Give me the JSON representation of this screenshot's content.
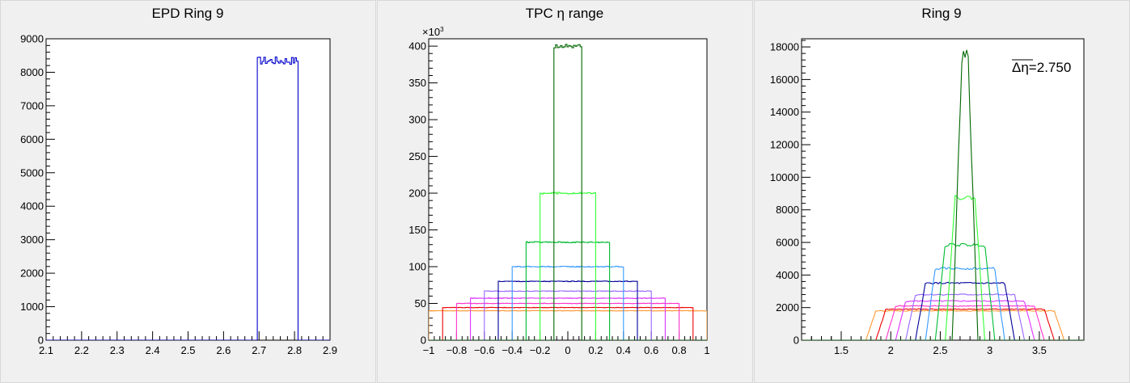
{
  "chart_data": [
    {
      "type": "histogram",
      "title": "EPD Ring 9",
      "xlim": [
        2.1,
        2.9
      ],
      "ylim": [
        0,
        9000
      ],
      "xticks": [
        "2.1",
        "2.2",
        "2.3",
        "2.4",
        "2.5",
        "2.6",
        "2.7",
        "2.8",
        "2.9"
      ],
      "yticks": [
        "0",
        "1000",
        "2000",
        "3000",
        "4000",
        "5000",
        "6000",
        "7000",
        "8000",
        "9000"
      ],
      "series": [
        {
          "color": "#0000cc",
          "x_range": [
            2.695,
            2.81
          ],
          "level": 8350,
          "noise": 120
        }
      ]
    },
    {
      "type": "histogram",
      "title": "TPC η range",
      "y_multiplier": "×10",
      "y_multiplier_exp": "3",
      "xlim": [
        -1,
        1
      ],
      "ylim": [
        0,
        410
      ],
      "xticks": [
        "−1",
        "−0.8",
        "−0.6",
        "−0.4",
        "−0.2",
        "0",
        "0.2",
        "0.4",
        "0.6",
        "0.8",
        "1"
      ],
      "yticks": [
        "0",
        "50",
        "100",
        "150",
        "200",
        "250",
        "300",
        "350",
        "400"
      ],
      "series": [
        {
          "color": "#ff9933",
          "x_range": [
            -1.0,
            1.0
          ],
          "level": 40
        },
        {
          "color": "#ee0000",
          "x_range": [
            -0.9,
            0.9
          ],
          "level": 44.4
        },
        {
          "color": "#ff33cc",
          "x_range": [
            -0.8,
            0.8
          ],
          "level": 50
        },
        {
          "color": "#dd33ff",
          "x_range": [
            -0.7,
            0.7
          ],
          "level": 57.1
        },
        {
          "color": "#9966ff",
          "x_range": [
            -0.6,
            0.6
          ],
          "level": 66.7
        },
        {
          "color": "#000099",
          "x_range": [
            -0.5,
            0.5
          ],
          "level": 80
        },
        {
          "color": "#3399ff",
          "x_range": [
            -0.4,
            0.4
          ],
          "level": 100
        },
        {
          "color": "#00bb33",
          "x_range": [
            -0.3,
            0.3
          ],
          "level": 133.3
        },
        {
          "color": "#33ff33",
          "x_range": [
            -0.2,
            0.2
          ],
          "level": 200
        },
        {
          "color": "#006600",
          "x_range": [
            -0.1,
            0.1
          ],
          "level": 400
        }
      ]
    },
    {
      "type": "histogram",
      "title": "Ring 9",
      "annotation": "Δη=2.750",
      "xlim": [
        1.1,
        3.95
      ],
      "ylim": [
        0,
        18500
      ],
      "xticks": [
        "1.5",
        "2",
        "2.5",
        "3",
        "3.5"
      ],
      "xtick_values": [
        1.5,
        2,
        2.5,
        3,
        3.5
      ],
      "yticks": [
        "0",
        "2000",
        "4000",
        "6000",
        "8000",
        "10000",
        "12000",
        "14000",
        "16000",
        "18000"
      ],
      "ytick_values": [
        0,
        2000,
        4000,
        6000,
        8000,
        10000,
        12000,
        14000,
        16000,
        18000
      ],
      "series": [
        {
          "color": "#ff9933",
          "level": 1800,
          "rise": [
            1.75,
            1.85
          ],
          "fall": [
            3.65,
            3.75
          ]
        },
        {
          "color": "#ee0000",
          "level": 1900,
          "rise": [
            1.85,
            1.95
          ],
          "fall": [
            3.55,
            3.65
          ]
        },
        {
          "color": "#ff33cc",
          "level": 2100,
          "rise": [
            1.95,
            2.05
          ],
          "fall": [
            3.45,
            3.55
          ]
        },
        {
          "color": "#dd33ff",
          "level": 2400,
          "rise": [
            2.05,
            2.15
          ],
          "fall": [
            3.35,
            3.45
          ]
        },
        {
          "color": "#9966ff",
          "level": 2800,
          "rise": [
            2.15,
            2.25
          ],
          "fall": [
            3.25,
            3.35
          ]
        },
        {
          "color": "#000099",
          "level": 3500,
          "rise": [
            2.25,
            2.35
          ],
          "fall": [
            3.15,
            3.25
          ]
        },
        {
          "color": "#3399ff",
          "level": 4400,
          "rise": [
            2.35,
            2.45
          ],
          "fall": [
            3.05,
            3.15
          ]
        },
        {
          "color": "#00bb33",
          "level": 5850,
          "rise": [
            2.45,
            2.55
          ],
          "fall": [
            2.95,
            3.05
          ]
        },
        {
          "color": "#33ff33",
          "level": 8750,
          "rise": [
            2.55,
            2.65
          ],
          "fall": [
            2.85,
            2.95
          ]
        },
        {
          "color": "#006600",
          "level": 17600,
          "rise": [
            2.62,
            2.72
          ],
          "fall": [
            2.78,
            2.88
          ]
        }
      ]
    }
  ]
}
